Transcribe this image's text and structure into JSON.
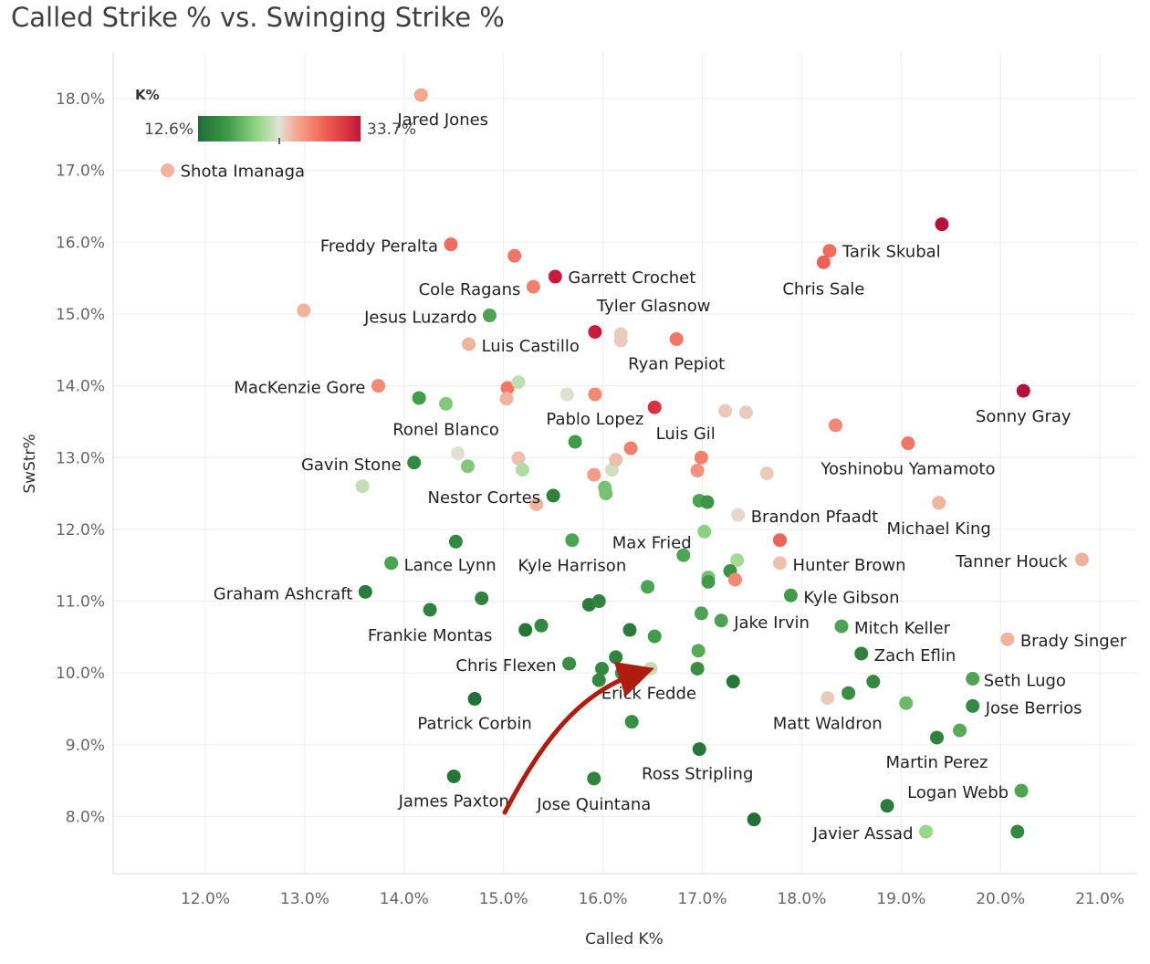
{
  "chart_data": {
    "type": "scatter",
    "title": "Called Strike % vs. Swinging Strike %",
    "xlabel": "Called K%",
    "ylabel": "SwStr%",
    "xlim": [
      11.1,
      21.3
    ],
    "ylim": [
      7.2,
      18.6
    ],
    "xticks": [
      "12.0%",
      "13.0%",
      "14.0%",
      "15.0%",
      "16.0%",
      "17.0%",
      "18.0%",
      "19.0%",
      "20.0%",
      "21.0%"
    ],
    "yticks": [
      "8.0%",
      "9.0%",
      "10.0%",
      "11.0%",
      "12.0%",
      "13.0%",
      "14.0%",
      "15.0%",
      "16.0%",
      "17.0%",
      "18.0%"
    ],
    "grid": true,
    "color_legend": {
      "title": "K%",
      "min_label": "12.6%",
      "max_label": "33.7%",
      "min": 12.6,
      "max": 33.7,
      "placement": "top-left",
      "colors": [
        "#1e6b35",
        "#3f9a48",
        "#99d98c",
        "#e4e0d4",
        "#f5a28a",
        "#ee5a4e",
        "#c4163b",
        "#a50f3a"
      ]
    },
    "points": [
      {
        "x": 14.17,
        "y": 18.05,
        "k": 25.5,
        "label": "Jared Jones"
      },
      {
        "x": 11.62,
        "y": 17.0,
        "k": 25.0,
        "label": "Shota Imanaga"
      },
      {
        "x": 14.47,
        "y": 15.97,
        "k": 28.5,
        "label": "Freddy Peralta"
      },
      {
        "x": 15.11,
        "y": 15.81,
        "k": 28.0,
        "label": ""
      },
      {
        "x": 15.52,
        "y": 15.52,
        "k": 32.0,
        "label": "Garrett Crochet"
      },
      {
        "x": 15.3,
        "y": 15.38,
        "k": 27.5,
        "label": "Cole Ragans"
      },
      {
        "x": 19.41,
        "y": 16.25,
        "k": 33.0,
        "label": ""
      },
      {
        "x": 18.28,
        "y": 15.88,
        "k": 28.5,
        "label": "Tarik Skubal"
      },
      {
        "x": 18.22,
        "y": 15.72,
        "k": 29.0,
        "label": "Chris Sale"
      },
      {
        "x": 12.99,
        "y": 15.05,
        "k": 25.0,
        "label": ""
      },
      {
        "x": 14.86,
        "y": 14.98,
        "k": 17.0,
        "label": "Jesus Luzardo"
      },
      {
        "x": 15.92,
        "y": 14.75,
        "k": 32.0,
        "label": ""
      },
      {
        "x": 16.18,
        "y": 14.72,
        "k": 24.0,
        "label": "Tyler Glasnow"
      },
      {
        "x": 16.18,
        "y": 14.63,
        "k": 24.0,
        "label": ""
      },
      {
        "x": 16.74,
        "y": 14.65,
        "k": 28.0,
        "label": "Ryan Pepiot"
      },
      {
        "x": 14.65,
        "y": 14.58,
        "k": 25.0,
        "label": "Luis Castillo"
      },
      {
        "x": 13.74,
        "y": 14.0,
        "k": 27.0,
        "label": "MacKenzie Gore"
      },
      {
        "x": 15.04,
        "y": 13.97,
        "k": 28.0,
        "label": ""
      },
      {
        "x": 15.15,
        "y": 14.05,
        "k": 22.0,
        "label": ""
      },
      {
        "x": 15.03,
        "y": 13.82,
        "k": 25.0,
        "label": ""
      },
      {
        "x": 14.15,
        "y": 13.83,
        "k": 16.5,
        "label": ""
      },
      {
        "x": 14.42,
        "y": 13.75,
        "k": 19.5,
        "label": "Ronel Blanco"
      },
      {
        "x": 15.64,
        "y": 13.88,
        "k": 23.0,
        "label": ""
      },
      {
        "x": 15.92,
        "y": 13.88,
        "k": 27.0,
        "label": "Pablo Lopez"
      },
      {
        "x": 16.52,
        "y": 13.7,
        "k": 31.0,
        "label": "Luis Gil"
      },
      {
        "x": 17.23,
        "y": 13.65,
        "k": 24.0,
        "label": ""
      },
      {
        "x": 17.44,
        "y": 13.63,
        "k": 24.0,
        "label": ""
      },
      {
        "x": 20.23,
        "y": 13.93,
        "k": 33.0,
        "label": "Sonny Gray"
      },
      {
        "x": 18.34,
        "y": 13.45,
        "k": 27.0,
        "label": ""
      },
      {
        "x": 19.07,
        "y": 13.2,
        "k": 28.0,
        "label": "Yoshinobu Yamamoto"
      },
      {
        "x": 14.1,
        "y": 12.93,
        "k": 15.0,
        "label": "Gavin Stone"
      },
      {
        "x": 13.58,
        "y": 12.6,
        "k": 22.0,
        "label": ""
      },
      {
        "x": 14.54,
        "y": 13.06,
        "k": 23.0,
        "label": ""
      },
      {
        "x": 14.64,
        "y": 12.88,
        "k": 19.5,
        "label": ""
      },
      {
        "x": 15.15,
        "y": 12.99,
        "k": 24.5,
        "label": ""
      },
      {
        "x": 15.19,
        "y": 12.83,
        "k": 21.5,
        "label": ""
      },
      {
        "x": 15.72,
        "y": 13.22,
        "k": 16.5,
        "label": ""
      },
      {
        "x": 15.91,
        "y": 12.76,
        "k": 26.0,
        "label": ""
      },
      {
        "x": 16.02,
        "y": 12.58,
        "k": 19.0,
        "label": ""
      },
      {
        "x": 16.03,
        "y": 12.5,
        "k": 19.0,
        "label": ""
      },
      {
        "x": 16.09,
        "y": 12.83,
        "k": 22.5,
        "label": ""
      },
      {
        "x": 16.13,
        "y": 12.97,
        "k": 24.5,
        "label": ""
      },
      {
        "x": 16.28,
        "y": 13.13,
        "k": 27.5,
        "label": ""
      },
      {
        "x": 16.99,
        "y": 13.0,
        "k": 27.5,
        "label": ""
      },
      {
        "x": 16.95,
        "y": 12.82,
        "k": 26.5,
        "label": ""
      },
      {
        "x": 17.65,
        "y": 12.78,
        "k": 24.0,
        "label": ""
      },
      {
        "x": 15.5,
        "y": 12.47,
        "k": 14.5,
        "label": "Nestor Cortes"
      },
      {
        "x": 15.33,
        "y": 12.35,
        "k": 25.0,
        "label": ""
      },
      {
        "x": 16.97,
        "y": 12.4,
        "k": 17.0,
        "label": ""
      },
      {
        "x": 17.05,
        "y": 12.38,
        "k": 16.0,
        "label": ""
      },
      {
        "x": 17.36,
        "y": 12.2,
        "k": 23.5,
        "label": "Brandon Pfaadt"
      },
      {
        "x": 19.38,
        "y": 12.37,
        "k": 25.0,
        "label": "Michael King"
      },
      {
        "x": 14.52,
        "y": 11.83,
        "k": 15.0,
        "label": ""
      },
      {
        "x": 15.69,
        "y": 11.85,
        "k": 17.0,
        "label": "Kyle Harrison"
      },
      {
        "x": 17.02,
        "y": 11.97,
        "k": 20.0,
        "label": "Max Fried"
      },
      {
        "x": 17.78,
        "y": 11.85,
        "k": 29.0,
        "label": ""
      },
      {
        "x": 13.87,
        "y": 11.53,
        "k": 17.0,
        "label": "Lance Lynn"
      },
      {
        "x": 16.81,
        "y": 11.64,
        "k": 17.0,
        "label": ""
      },
      {
        "x": 17.35,
        "y": 11.57,
        "k": 21.0,
        "label": ""
      },
      {
        "x": 17.78,
        "y": 11.53,
        "k": 24.5,
        "label": "Hunter Brown"
      },
      {
        "x": 20.82,
        "y": 11.58,
        "k": 25.0,
        "label": "Tanner Houck"
      },
      {
        "x": 17.06,
        "y": 11.33,
        "k": 19.0,
        "label": ""
      },
      {
        "x": 17.06,
        "y": 11.27,
        "k": 16.5,
        "label": ""
      },
      {
        "x": 17.28,
        "y": 11.42,
        "k": 16.0,
        "label": ""
      },
      {
        "x": 17.33,
        "y": 11.3,
        "k": 27.0,
        "label": ""
      },
      {
        "x": 16.45,
        "y": 11.2,
        "k": 17.0,
        "label": ""
      },
      {
        "x": 13.61,
        "y": 11.13,
        "k": 14.0,
        "label": "Graham Ashcraft"
      },
      {
        "x": 14.78,
        "y": 11.04,
        "k": 14.5,
        "label": ""
      },
      {
        "x": 15.86,
        "y": 10.95,
        "k": 14.0,
        "label": ""
      },
      {
        "x": 15.96,
        "y": 11.0,
        "k": 14.5,
        "label": ""
      },
      {
        "x": 17.89,
        "y": 11.08,
        "k": 16.5,
        "label": "Kyle Gibson"
      },
      {
        "x": 14.26,
        "y": 10.88,
        "k": 14.5,
        "label": "Frankie Montas"
      },
      {
        "x": 16.99,
        "y": 10.83,
        "k": 17.0,
        "label": ""
      },
      {
        "x": 17.19,
        "y": 10.73,
        "k": 17.0,
        "label": "Jake Irvin"
      },
      {
        "x": 15.22,
        "y": 10.6,
        "k": 13.5,
        "label": ""
      },
      {
        "x": 15.38,
        "y": 10.66,
        "k": 15.0,
        "label": ""
      },
      {
        "x": 16.27,
        "y": 10.6,
        "k": 14.0,
        "label": ""
      },
      {
        "x": 16.52,
        "y": 10.51,
        "k": 16.5,
        "label": ""
      },
      {
        "x": 18.4,
        "y": 10.65,
        "k": 17.0,
        "label": "Mitch Keller"
      },
      {
        "x": 20.07,
        "y": 10.47,
        "k": 25.0,
        "label": "Brady Singer"
      },
      {
        "x": 15.66,
        "y": 10.13,
        "k": 15.5,
        "label": "Chris Flexen"
      },
      {
        "x": 16.13,
        "y": 10.22,
        "k": 14.5,
        "label": ""
      },
      {
        "x": 15.99,
        "y": 10.06,
        "k": 15.0,
        "label": ""
      },
      {
        "x": 16.96,
        "y": 10.31,
        "k": 17.5,
        "label": ""
      },
      {
        "x": 18.6,
        "y": 10.27,
        "k": 14.5,
        "label": "Zach Eflin"
      },
      {
        "x": 16.48,
        "y": 10.06,
        "k": 22.0,
        "label": "Erick Fedde"
      },
      {
        "x": 16.19,
        "y": 10.0,
        "k": 16.0,
        "label": ""
      },
      {
        "x": 16.95,
        "y": 10.06,
        "k": 15.5,
        "label": ""
      },
      {
        "x": 15.96,
        "y": 9.9,
        "k": 15.0,
        "label": ""
      },
      {
        "x": 17.31,
        "y": 9.88,
        "k": 13.5,
        "label": ""
      },
      {
        "x": 18.72,
        "y": 9.88,
        "k": 15.0,
        "label": ""
      },
      {
        "x": 19.72,
        "y": 9.92,
        "k": 17.0,
        "label": "Seth Lugo"
      },
      {
        "x": 14.71,
        "y": 9.64,
        "k": 13.0,
        "label": "Patrick Corbin"
      },
      {
        "x": 18.26,
        "y": 9.65,
        "k": 24.0,
        "label": "Matt Waldron"
      },
      {
        "x": 18.47,
        "y": 9.72,
        "k": 15.5,
        "label": ""
      },
      {
        "x": 19.05,
        "y": 9.58,
        "k": 18.5,
        "label": ""
      },
      {
        "x": 19.72,
        "y": 9.54,
        "k": 15.0,
        "label": "Jose Berrios"
      },
      {
        "x": 16.29,
        "y": 9.32,
        "k": 15.5,
        "label": ""
      },
      {
        "x": 19.36,
        "y": 9.1,
        "k": 14.5,
        "label": "Martin Perez"
      },
      {
        "x": 19.59,
        "y": 9.2,
        "k": 17.5,
        "label": ""
      },
      {
        "x": 16.97,
        "y": 8.94,
        "k": 13.5,
        "label": "Ross Stripling"
      },
      {
        "x": 14.5,
        "y": 8.56,
        "k": 13.5,
        "label": "James Paxton"
      },
      {
        "x": 15.91,
        "y": 8.53,
        "k": 14.5,
        "label": "Jose Quintana"
      },
      {
        "x": 20.21,
        "y": 8.36,
        "k": 17.0,
        "label": "Logan Webb"
      },
      {
        "x": 18.86,
        "y": 8.15,
        "k": 14.0,
        "label": ""
      },
      {
        "x": 17.52,
        "y": 7.96,
        "k": 13.0,
        "label": ""
      },
      {
        "x": 19.25,
        "y": 7.79,
        "k": 20.5,
        "label": "Javier Assad"
      },
      {
        "x": 20.17,
        "y": 7.79,
        "k": 15.0,
        "label": ""
      }
    ]
  }
}
